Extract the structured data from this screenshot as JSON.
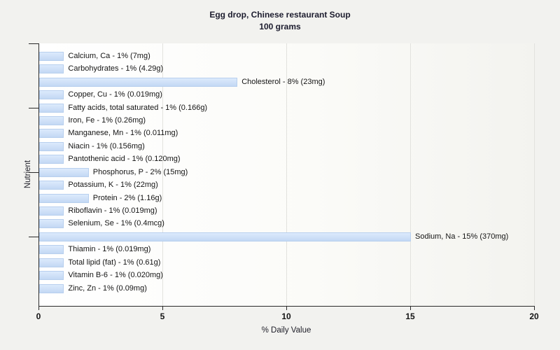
{
  "page": {
    "background_color": "#f2f2ef"
  },
  "chart": {
    "title_line1": "Egg drop, Chinese restaurant Soup",
    "title_line2": "100 grams",
    "xlabel": "% Daily Value",
    "ylabel": "Nutrient"
  },
  "chart_data": {
    "type": "bar",
    "orientation": "horizontal",
    "title": "Egg drop, Chinese restaurant Soup",
    "subtitle": "100 grams",
    "xlabel": "% Daily Value",
    "ylabel": "Nutrient",
    "xlim": [
      0,
      20
    ],
    "xticks": [
      "0",
      "5",
      "10",
      "15",
      "20"
    ],
    "xtick_values": [
      0,
      5,
      10,
      15,
      20
    ],
    "grid": "vertical-major",
    "legend": false,
    "categories": [
      "Calcium, Ca",
      "Carbohydrates",
      "Cholesterol",
      "Copper, Cu",
      "Fatty acids, total saturated",
      "Iron, Fe",
      "Manganese, Mn",
      "Niacin",
      "Pantothenic acid",
      "Phosphorus, P",
      "Potassium, K",
      "Protein",
      "Riboflavin",
      "Selenium, Se",
      "Sodium, Na",
      "Thiamin",
      "Total lipid (fat)",
      "Vitamin B-6",
      "Zinc, Zn"
    ],
    "values": [
      1,
      1,
      8,
      1,
      1,
      1,
      1,
      1,
      1,
      2,
      1,
      2,
      1,
      1,
      15,
      1,
      1,
      1,
      1
    ],
    "items": [
      {
        "name": "Calcium, Ca",
        "percent": 1,
        "amount": "7mg",
        "label": "Calcium, Ca - 1% (7mg)"
      },
      {
        "name": "Carbohydrates",
        "percent": 1,
        "amount": "4.29g",
        "label": "Carbohydrates - 1% (4.29g)"
      },
      {
        "name": "Cholesterol",
        "percent": 8,
        "amount": "23mg",
        "label": "Cholesterol - 8% (23mg)"
      },
      {
        "name": "Copper, Cu",
        "percent": 1,
        "amount": "0.019mg",
        "label": "Copper, Cu - 1% (0.019mg)"
      },
      {
        "name": "Fatty acids, total saturated",
        "percent": 1,
        "amount": "0.166g",
        "label": "Fatty acids, total saturated - 1% (0.166g)"
      },
      {
        "name": "Iron, Fe",
        "percent": 1,
        "amount": "0.26mg",
        "label": "Iron, Fe - 1% (0.26mg)"
      },
      {
        "name": "Manganese, Mn",
        "percent": 1,
        "amount": "0.011mg",
        "label": "Manganese, Mn - 1% (0.011mg)"
      },
      {
        "name": "Niacin",
        "percent": 1,
        "amount": "0.156mg",
        "label": "Niacin - 1% (0.156mg)"
      },
      {
        "name": "Pantothenic acid",
        "percent": 1,
        "amount": "0.120mg",
        "label": "Pantothenic acid - 1% (0.120mg)"
      },
      {
        "name": "Phosphorus, P",
        "percent": 2,
        "amount": "15mg",
        "label": "Phosphorus, P - 2% (15mg)"
      },
      {
        "name": "Potassium, K",
        "percent": 1,
        "amount": "22mg",
        "label": "Potassium, K - 1% (22mg)"
      },
      {
        "name": "Protein",
        "percent": 2,
        "amount": "1.16g",
        "label": "Protein - 2% (1.16g)"
      },
      {
        "name": "Riboflavin",
        "percent": 1,
        "amount": "0.019mg",
        "label": "Riboflavin - 1% (0.019mg)"
      },
      {
        "name": "Selenium, Se",
        "percent": 1,
        "amount": "0.4mcg",
        "label": "Selenium, Se - 1% (0.4mcg)"
      },
      {
        "name": "Sodium, Na",
        "percent": 15,
        "amount": "370mg",
        "label": "Sodium, Na - 15% (370mg)"
      },
      {
        "name": "Thiamin",
        "percent": 1,
        "amount": "0.019mg",
        "label": "Thiamin - 1% (0.019mg)"
      },
      {
        "name": "Total lipid (fat)",
        "percent": 1,
        "amount": "0.61g",
        "label": "Total lipid (fat) - 1% (0.61g)"
      },
      {
        "name": "Vitamin B-6",
        "percent": 1,
        "amount": "0.020mg",
        "label": "Vitamin B-6 - 1% (0.020mg)"
      },
      {
        "name": "Zinc, Zn",
        "percent": 1,
        "amount": "0.09mg",
        "label": "Zinc, Zn - 1% (0.09mg)"
      }
    ],
    "colors": {
      "bar_fill_top": "#dceafc",
      "bar_fill_bottom": "#c3d8f4",
      "bar_border": "#b7cfee",
      "axis": "#2a2a2a",
      "grid": "#e2e2de",
      "text": "#141414",
      "title_text": "#1c1c2e",
      "plot_bg_left": "#ffffff",
      "plot_bg_right": "#f3f3ef",
      "page_bg": "#f2f2ef"
    }
  }
}
